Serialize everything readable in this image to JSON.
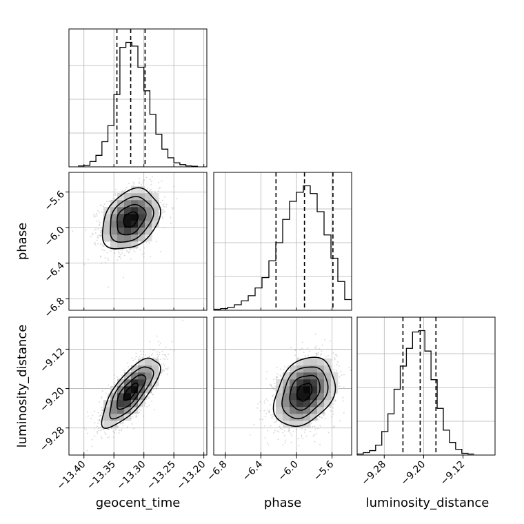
{
  "chart_data": {
    "type": "corner",
    "parameters": [
      "geocent_time",
      "phase",
      "luminosity_distance"
    ],
    "ranges": {
      "geocent_time": [
        -13.425,
        -13.195
      ],
      "phase": [
        -6.93,
        -5.38
      ],
      "luminosity_distance": [
        -9.335,
        -9.055
      ]
    },
    "ticks": {
      "geocent_time": [
        -13.4,
        -13.35,
        -13.3,
        -13.25,
        -13.2
      ],
      "phase": [
        -6.8,
        -6.4,
        -6.0,
        -5.6
      ],
      "luminosity_distance": [
        -9.28,
        -9.2,
        -9.12
      ]
    },
    "tick_labels": {
      "geocent_time": [
        "−13.40",
        "−13.35",
        "−13.30",
        "−13.25",
        "−13.20"
      ],
      "phase": [
        "−6.8",
        "−6.4",
        "−6.0",
        "−5.6"
      ],
      "luminosity_distance": [
        "−9.28",
        "−9.20",
        "−9.12"
      ]
    },
    "quantiles": {
      "geocent_time": [
        -13.345,
        -13.322,
        -13.298
      ],
      "phase": [
        -6.23,
        -5.91,
        -5.59
      ],
      "luminosity_distance": [
        -9.242,
        -9.207,
        -9.175
      ]
    },
    "histograms": {
      "geocent_time": {
        "start": -13.41,
        "width": 0.01,
        "counts": [
          0.5,
          1,
          4,
          9,
          20,
          33,
          58,
          96,
          100,
          97,
          80,
          61,
          42,
          26,
          14,
          7,
          3,
          1.5,
          0.5,
          0.2
        ]
      },
      "phase": {
        "start": -6.93,
        "width": 0.0775,
        "counts": [
          0.5,
          1,
          2,
          4,
          7,
          11,
          17,
          25,
          38,
          52,
          70,
          84,
          91,
          96,
          90,
          76,
          58,
          40,
          22,
          8
        ]
      },
      "luminosity_distance": {
        "start": -9.335,
        "width": 0.0125,
        "counts": [
          0.5,
          1.5,
          3,
          7,
          17,
          30,
          48,
          65,
          78,
          90,
          91,
          76,
          55,
          34,
          18,
          9,
          4,
          1,
          0.5
        ]
      }
    },
    "pairs": [
      {
        "x": "geocent_time",
        "y": "phase",
        "center": [
          -13.322,
          -5.91
        ],
        "sigma": [
          0.024,
          0.17
        ],
        "correlation": 0.3
      },
      {
        "x": "geocent_time",
        "y": "luminosity_distance",
        "center": [
          -13.322,
          -9.207
        ],
        "sigma": [
          0.024,
          0.035
        ],
        "correlation": 0.75
      },
      {
        "x": "phase",
        "y": "luminosity_distance",
        "center": [
          -5.91,
          -9.207
        ],
        "sigma": [
          0.17,
          0.035
        ],
        "correlation": 0.3
      }
    ],
    "contour_levels": [
      0.118,
      0.393,
      0.675,
      0.865
    ],
    "grid": true,
    "colors": {
      "line": "#000000",
      "points": "#999999",
      "grid": "#b0b0b0"
    }
  }
}
